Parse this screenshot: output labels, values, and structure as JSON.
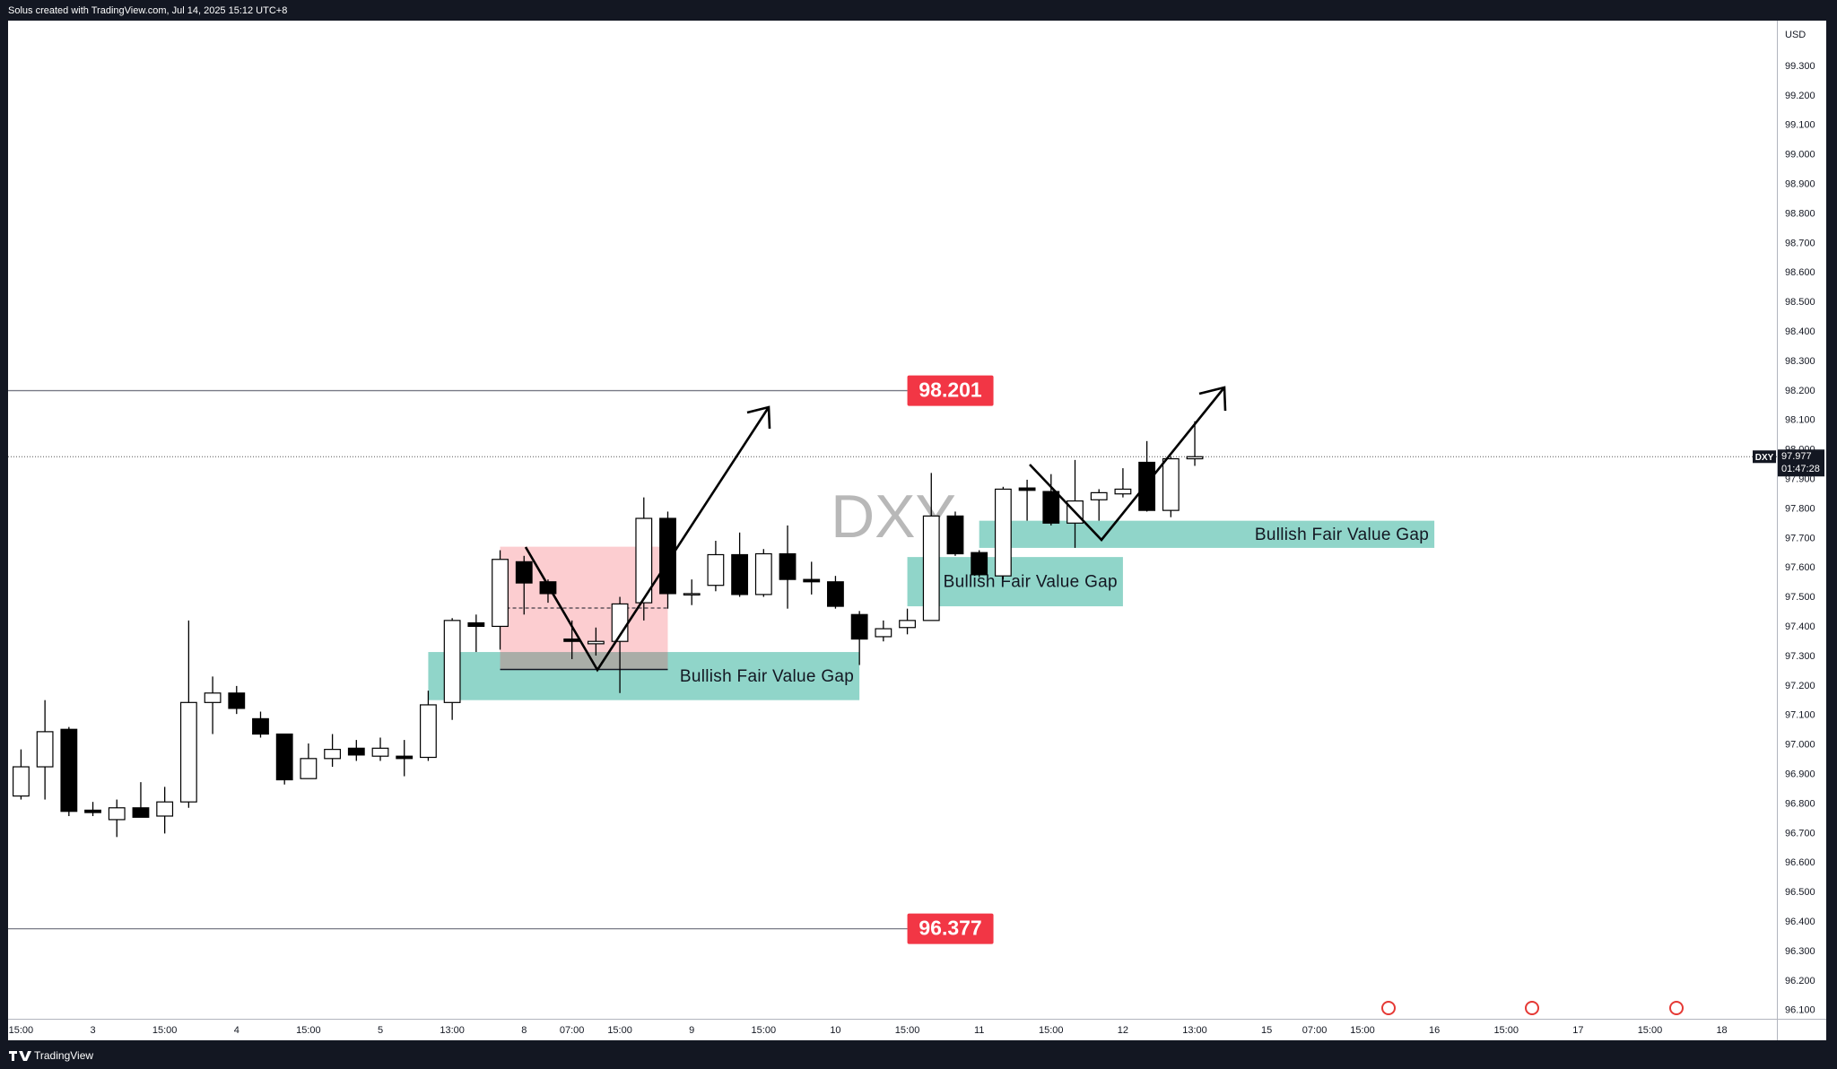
{
  "header": {
    "text": "Solus created with TradingView.com, Jul 14, 2025 15:12 UTC+8"
  },
  "chart_data": {
    "type": "candlestick",
    "symbol": "DXY",
    "currency": "USD",
    "open": [
      96.827,
      96.926,
      97.053,
      96.779,
      96.747,
      96.787,
      96.759,
      96.807,
      97.144,
      97.176,
      97.089,
      97.037,
      96.886,
      96.954,
      96.989,
      96.962,
      96.962,
      96.958,
      97.144,
      97.414,
      97.402,
      97.621,
      97.553,
      97.359,
      97.343,
      97.351,
      97.482,
      97.768,
      97.51,
      97.541,
      97.645,
      97.51,
      97.648,
      97.561,
      97.553,
      97.442,
      97.367,
      97.398,
      97.422,
      97.776,
      97.652,
      97.573,
      97.871,
      97.859,
      97.752,
      97.831,
      97.851,
      97.958,
      97.795,
      97.97
    ],
    "high": [
      96.985,
      97.152,
      97.061,
      96.807,
      96.815,
      96.874,
      96.858,
      97.422,
      97.232,
      97.2,
      97.113,
      97.037,
      97.005,
      97.037,
      97.017,
      97.025,
      97.017,
      97.184,
      97.43,
      97.442,
      97.66,
      97.641,
      97.561,
      97.422,
      97.398,
      97.502,
      97.839,
      97.791,
      97.561,
      97.692,
      97.72,
      97.664,
      97.744,
      97.621,
      97.573,
      97.454,
      97.422,
      97.462,
      97.922,
      97.791,
      97.66,
      97.875,
      97.899,
      97.918,
      97.966,
      97.867,
      97.938,
      98.03,
      97.978,
      98.097
    ],
    "low": [
      96.815,
      96.815,
      96.759,
      96.759,
      96.688,
      96.755,
      96.7,
      96.787,
      97.037,
      97.105,
      97.025,
      96.866,
      96.886,
      96.926,
      96.946,
      96.946,
      96.894,
      96.946,
      97.085,
      97.315,
      97.323,
      97.442,
      97.482,
      97.291,
      97.303,
      97.176,
      97.422,
      97.462,
      97.474,
      97.521,
      97.502,
      97.502,
      97.462,
      97.51,
      97.462,
      97.271,
      97.351,
      97.375,
      97.422,
      97.641,
      97.569,
      97.561,
      97.76,
      97.744,
      97.668,
      97.76,
      97.839,
      97.791,
      97.772,
      97.946
    ],
    "close": [
      96.926,
      97.045,
      96.775,
      96.771,
      96.787,
      96.755,
      96.807,
      97.144,
      97.176,
      97.124,
      97.037,
      96.882,
      96.954,
      96.985,
      96.966,
      96.989,
      96.954,
      97.136,
      97.422,
      97.402,
      97.629,
      97.549,
      97.513,
      97.351,
      97.351,
      97.478,
      97.768,
      97.513,
      97.513,
      97.645,
      97.51,
      97.648,
      97.561,
      97.553,
      97.47,
      97.359,
      97.394,
      97.422,
      97.776,
      97.648,
      97.577,
      97.867,
      97.863,
      97.752,
      97.827,
      97.855,
      97.867,
      97.795,
      97.97,
      97.977
    ],
    "up_color": "#ffffff",
    "down_color": "#000000",
    "wick_color": "#000000",
    "xlim": [
      -0.54,
      73.3
    ],
    "xticks": [
      {
        "value": 0,
        "label": "15:00"
      },
      {
        "value": 3,
        "label": "3"
      },
      {
        "value": 6,
        "label": "15:00"
      },
      {
        "value": 9,
        "label": "4"
      },
      {
        "value": 12,
        "label": "15:00"
      },
      {
        "value": 15,
        "label": "5"
      },
      {
        "value": 18,
        "label": "13:00"
      },
      {
        "value": 21,
        "label": "8"
      },
      {
        "value": 23,
        "label": "07:00"
      },
      {
        "value": 25,
        "label": "15:00"
      },
      {
        "value": 28,
        "label": "9"
      },
      {
        "value": 31,
        "label": "15:00"
      },
      {
        "value": 34,
        "label": "10"
      },
      {
        "value": 37,
        "label": "15:00"
      },
      {
        "value": 40,
        "label": "11"
      },
      {
        "value": 43,
        "label": "15:00"
      },
      {
        "value": 46,
        "label": "12"
      },
      {
        "value": 49,
        "label": "13:00"
      },
      {
        "value": 52,
        "label": "15"
      },
      {
        "value": 54,
        "label": "07:00"
      },
      {
        "value": 56,
        "label": "15:00"
      },
      {
        "value": 59,
        "label": "16"
      },
      {
        "value": 62,
        "label": "15:00"
      },
      {
        "value": 65,
        "label": "17"
      },
      {
        "value": 68,
        "label": "15:00"
      },
      {
        "value": 71,
        "label": "18"
      }
    ],
    "ylim": [
      96.072,
      99.455
    ],
    "yticks": [
      {
        "value": 96.1,
        "label": "96.100"
      },
      {
        "value": 96.2,
        "label": "96.200"
      },
      {
        "value": 96.3,
        "label": "96.300"
      },
      {
        "value": 96.4,
        "label": "96.400"
      },
      {
        "value": 96.5,
        "label": "96.500"
      },
      {
        "value": 96.6,
        "label": "96.600"
      },
      {
        "value": 96.7,
        "label": "96.700"
      },
      {
        "value": 96.8,
        "label": "96.800"
      },
      {
        "value": 96.9,
        "label": "96.900"
      },
      {
        "value": 97.0,
        "label": "97.000"
      },
      {
        "value": 97.1,
        "label": "97.100"
      },
      {
        "value": 97.2,
        "label": "97.200"
      },
      {
        "value": 97.3,
        "label": "97.300"
      },
      {
        "value": 97.4,
        "label": "97.400"
      },
      {
        "value": 97.5,
        "label": "97.500"
      },
      {
        "value": 97.6,
        "label": "97.600"
      },
      {
        "value": 97.7,
        "label": "97.700"
      },
      {
        "value": 97.8,
        "label": "97.800"
      },
      {
        "value": 97.9,
        "label": "97.900"
      },
      {
        "value": 98.0,
        "label": "98.000"
      },
      {
        "value": 98.1,
        "label": "98.100"
      },
      {
        "value": 98.2,
        "label": "98.200"
      },
      {
        "value": 98.3,
        "label": "98.300"
      },
      {
        "value": 98.4,
        "label": "98.400"
      },
      {
        "value": 98.5,
        "label": "98.500"
      },
      {
        "value": 98.6,
        "label": "98.600"
      },
      {
        "value": 98.7,
        "label": "98.700"
      },
      {
        "value": 98.8,
        "label": "98.800"
      },
      {
        "value": 98.9,
        "label": "98.900"
      },
      {
        "value": 99.0,
        "label": "99.000"
      },
      {
        "value": 99.1,
        "label": "99.100"
      },
      {
        "value": 99.2,
        "label": "99.200"
      },
      {
        "value": 99.3,
        "label": "99.300"
      }
    ],
    "grid": false,
    "last_price": 97.977,
    "countdown": "01:47:28",
    "levels": [
      {
        "value": 98.201,
        "end": 37,
        "color": "#f23645"
      },
      {
        "value": 96.377,
        "end": 37,
        "color": "#f23645"
      }
    ],
    "zones": [
      {
        "label": "Bullish Fair Value Gap",
        "start": 17,
        "end": 35,
        "low": 97.152,
        "high": 97.315,
        "color": "rgba(34,171,148,0.5)"
      },
      {
        "label": "Bullish Fair Value Gap",
        "start": 37,
        "end": 46,
        "low": 97.47,
        "high": 97.637,
        "color": "rgba(34,171,148,0.5)"
      },
      {
        "label": "Bullish Fair Value Gap",
        "start": 40,
        "end": 59,
        "low": 97.668,
        "high": 97.76,
        "color": "rgba(34,171,148,0.5)"
      }
    ],
    "boxes": [
      {
        "start": 20,
        "end": 27,
        "low": 97.256,
        "high": 97.672,
        "color": "rgba(242,54,69,0.25)"
      }
    ]
  },
  "footer": {
    "brand": "TradingView"
  }
}
